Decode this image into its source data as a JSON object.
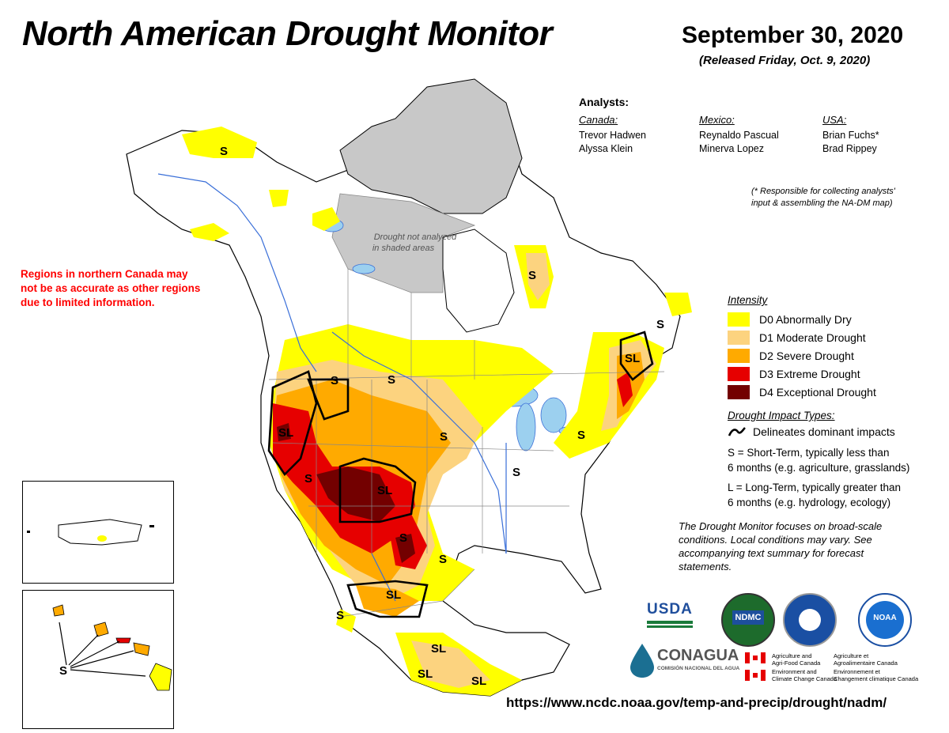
{
  "header": {
    "title": "North American Drought Monitor",
    "date": "September 30, 2020",
    "released": "(Released Friday, Oct. 9, 2020)"
  },
  "analysts": {
    "heading": "Analysts:",
    "columns": [
      {
        "country": "Canada:",
        "names": [
          "Trevor Hadwen",
          "Alyssa Klein"
        ]
      },
      {
        "country": "Mexico:",
        "names": [
          "Reynaldo Pascual",
          "Minerva Lopez"
        ]
      },
      {
        "country": "USA:",
        "names": [
          "Brian Fuchs*",
          "Brad Rippey"
        ]
      }
    ],
    "responsibility_note_1": "(* Responsible for collecting analysts'",
    "responsibility_note_2": "input & assembling the NA-DM map)"
  },
  "warning": {
    "line1": "Regions in northern Canada may",
    "line2": "not be as accurate as other regions",
    "line3": "due to limited information.",
    "color": "#ff0000"
  },
  "map": {
    "not_analyzed_line1": "Drought not analyzed",
    "not_analyzed_line2": "in shaded areas",
    "labels": {
      "s_alaska": "S",
      "s_quebec": "S",
      "s_newfoundland": "S",
      "sl_maritimes": "SL",
      "s_bc": "S",
      "s_prairies": "S",
      "sl_oregon": "SL",
      "s_nevada": "S",
      "sl_colorado": "SL",
      "s_dakota": "S",
      "s_ontario": "S",
      "s_newengland": "S",
      "s_midwest": "S",
      "s_texas": "S",
      "sl_chihuahua": "SL",
      "s_baja": "S",
      "sl_mexico1": "SL",
      "sl_mexico2": "SL",
      "sl_mexico3": "SL",
      "s_hawaii": "S"
    },
    "colors": {
      "d0": "#ffff00",
      "d1": "#fcd37f",
      "d2": "#ffaa00",
      "d3": "#e60000",
      "d4": "#730000",
      "not_analyzed": "#c8c8c8",
      "water": "#9cd0ef",
      "rivers": "#3a6fd8"
    }
  },
  "legend": {
    "intensity_title": "Intensity",
    "items": [
      {
        "code": "D0",
        "label": "D0 Abnormally Dry",
        "color": "#ffff00"
      },
      {
        "code": "D1",
        "label": "D1 Moderate Drought",
        "color": "#fcd37f"
      },
      {
        "code": "D2",
        "label": "D2 Severe Drought",
        "color": "#ffaa00"
      },
      {
        "code": "D3",
        "label": "D3 Extreme Drought",
        "color": "#e60000"
      },
      {
        "code": "D4",
        "label": "D4 Exceptional Drought",
        "color": "#730000"
      }
    ],
    "impact_title": "Drought Impact Types:",
    "impact_line": "Delineates dominant impacts",
    "short_term_1": "S = Short-Term, typically less than",
    "short_term_2": "6 months (e.g. agriculture, grasslands)",
    "long_term_1": "L = Long-Term, typically greater than",
    "long_term_2": "6 months (e.g. hydrology, ecology)"
  },
  "focus_note": "The Drought Monitor focuses on broad-scale conditions. Local conditions may vary. See accompanying text summary for forecast statements.",
  "logos": {
    "usda": "USDA",
    "ndmc": "NDMC",
    "noaa": "NOAA",
    "conagua": "CONAGUA",
    "conagua_sub": "COMISIÓN NACIONAL DEL AGUA",
    "canada_agri_en_1": "Agriculture and",
    "canada_agri_en_2": "Agri-Food Canada",
    "canada_agri_fr_1": "Agriculture et",
    "canada_agri_fr_2": "Agroalimentaire Canada",
    "canada_env_en_1": "Environment and",
    "canada_env_en_2": "Climate Change Canada",
    "canada_env_fr_1": "Environnement et",
    "canada_env_fr_2": "Changement climatique Canada"
  },
  "url": "https://www.ncdc.noaa.gov/temp-and-precip/drought/nadm/"
}
